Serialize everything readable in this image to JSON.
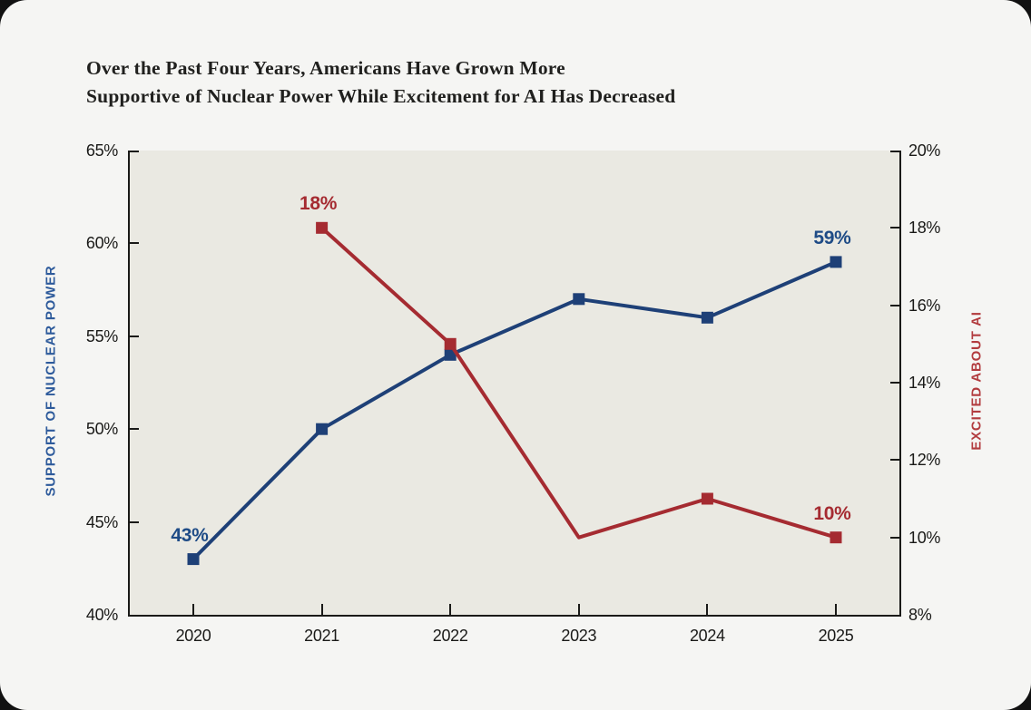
{
  "page": {
    "background": "#111111",
    "card_background": "#f5f5f3"
  },
  "header": {
    "title_line1": "Over the Past Four Years, Americans Have Grown More",
    "title_line2": "Supportive of Nuclear Power While Excitement for AI Has Decreased"
  },
  "chart_data": {
    "type": "line",
    "categories": [
      "2020",
      "2021",
      "2022",
      "2023",
      "2024",
      "2025"
    ],
    "series": [
      {
        "name": "Support of Nuclear Power",
        "axis": "left",
        "color": "#1e4077",
        "marker_shape": "square",
        "values": [
          43,
          50,
          54,
          57,
          56,
          59
        ],
        "markers": [
          true,
          true,
          true,
          true,
          true,
          true
        ]
      },
      {
        "name": "Excited About AI",
        "axis": "right",
        "color": "#a52b31",
        "marker_shape": "square",
        "values": [
          null,
          18,
          15,
          10,
          11,
          10
        ],
        "markers": [
          null,
          true,
          true,
          false,
          true,
          true
        ]
      }
    ],
    "left_axis": {
      "label": "SUPPORT OF NUCLEAR POWER",
      "label_color": "#2d5a9b",
      "min": 40,
      "max": 65,
      "step": 5,
      "tick_suffix": "%",
      "ticks": [
        "40%",
        "45%",
        "50%",
        "55%",
        "60%",
        "65%"
      ]
    },
    "right_axis": {
      "label": "EXCITED ABOUT AI",
      "label_color": "#b23c3f",
      "min": 8,
      "max": 20,
      "step": 2,
      "tick_suffix": "%",
      "ticks": [
        "8%",
        "10%",
        "12%",
        "14%",
        "16%",
        "18%",
        "20%"
      ]
    },
    "annotations": [
      {
        "series": 0,
        "point": 0,
        "text": "43%",
        "color": "#1e4b86"
      },
      {
        "series": 1,
        "point": 1,
        "text": "18%",
        "color": "#a52b31"
      },
      {
        "series": 0,
        "point": 5,
        "text": "59%",
        "color": "#1e4b86"
      },
      {
        "series": 1,
        "point": 5,
        "text": "10%",
        "color": "#a52b31"
      }
    ],
    "plot_background": "#eae9e2",
    "grid": false,
    "legend": "none"
  }
}
